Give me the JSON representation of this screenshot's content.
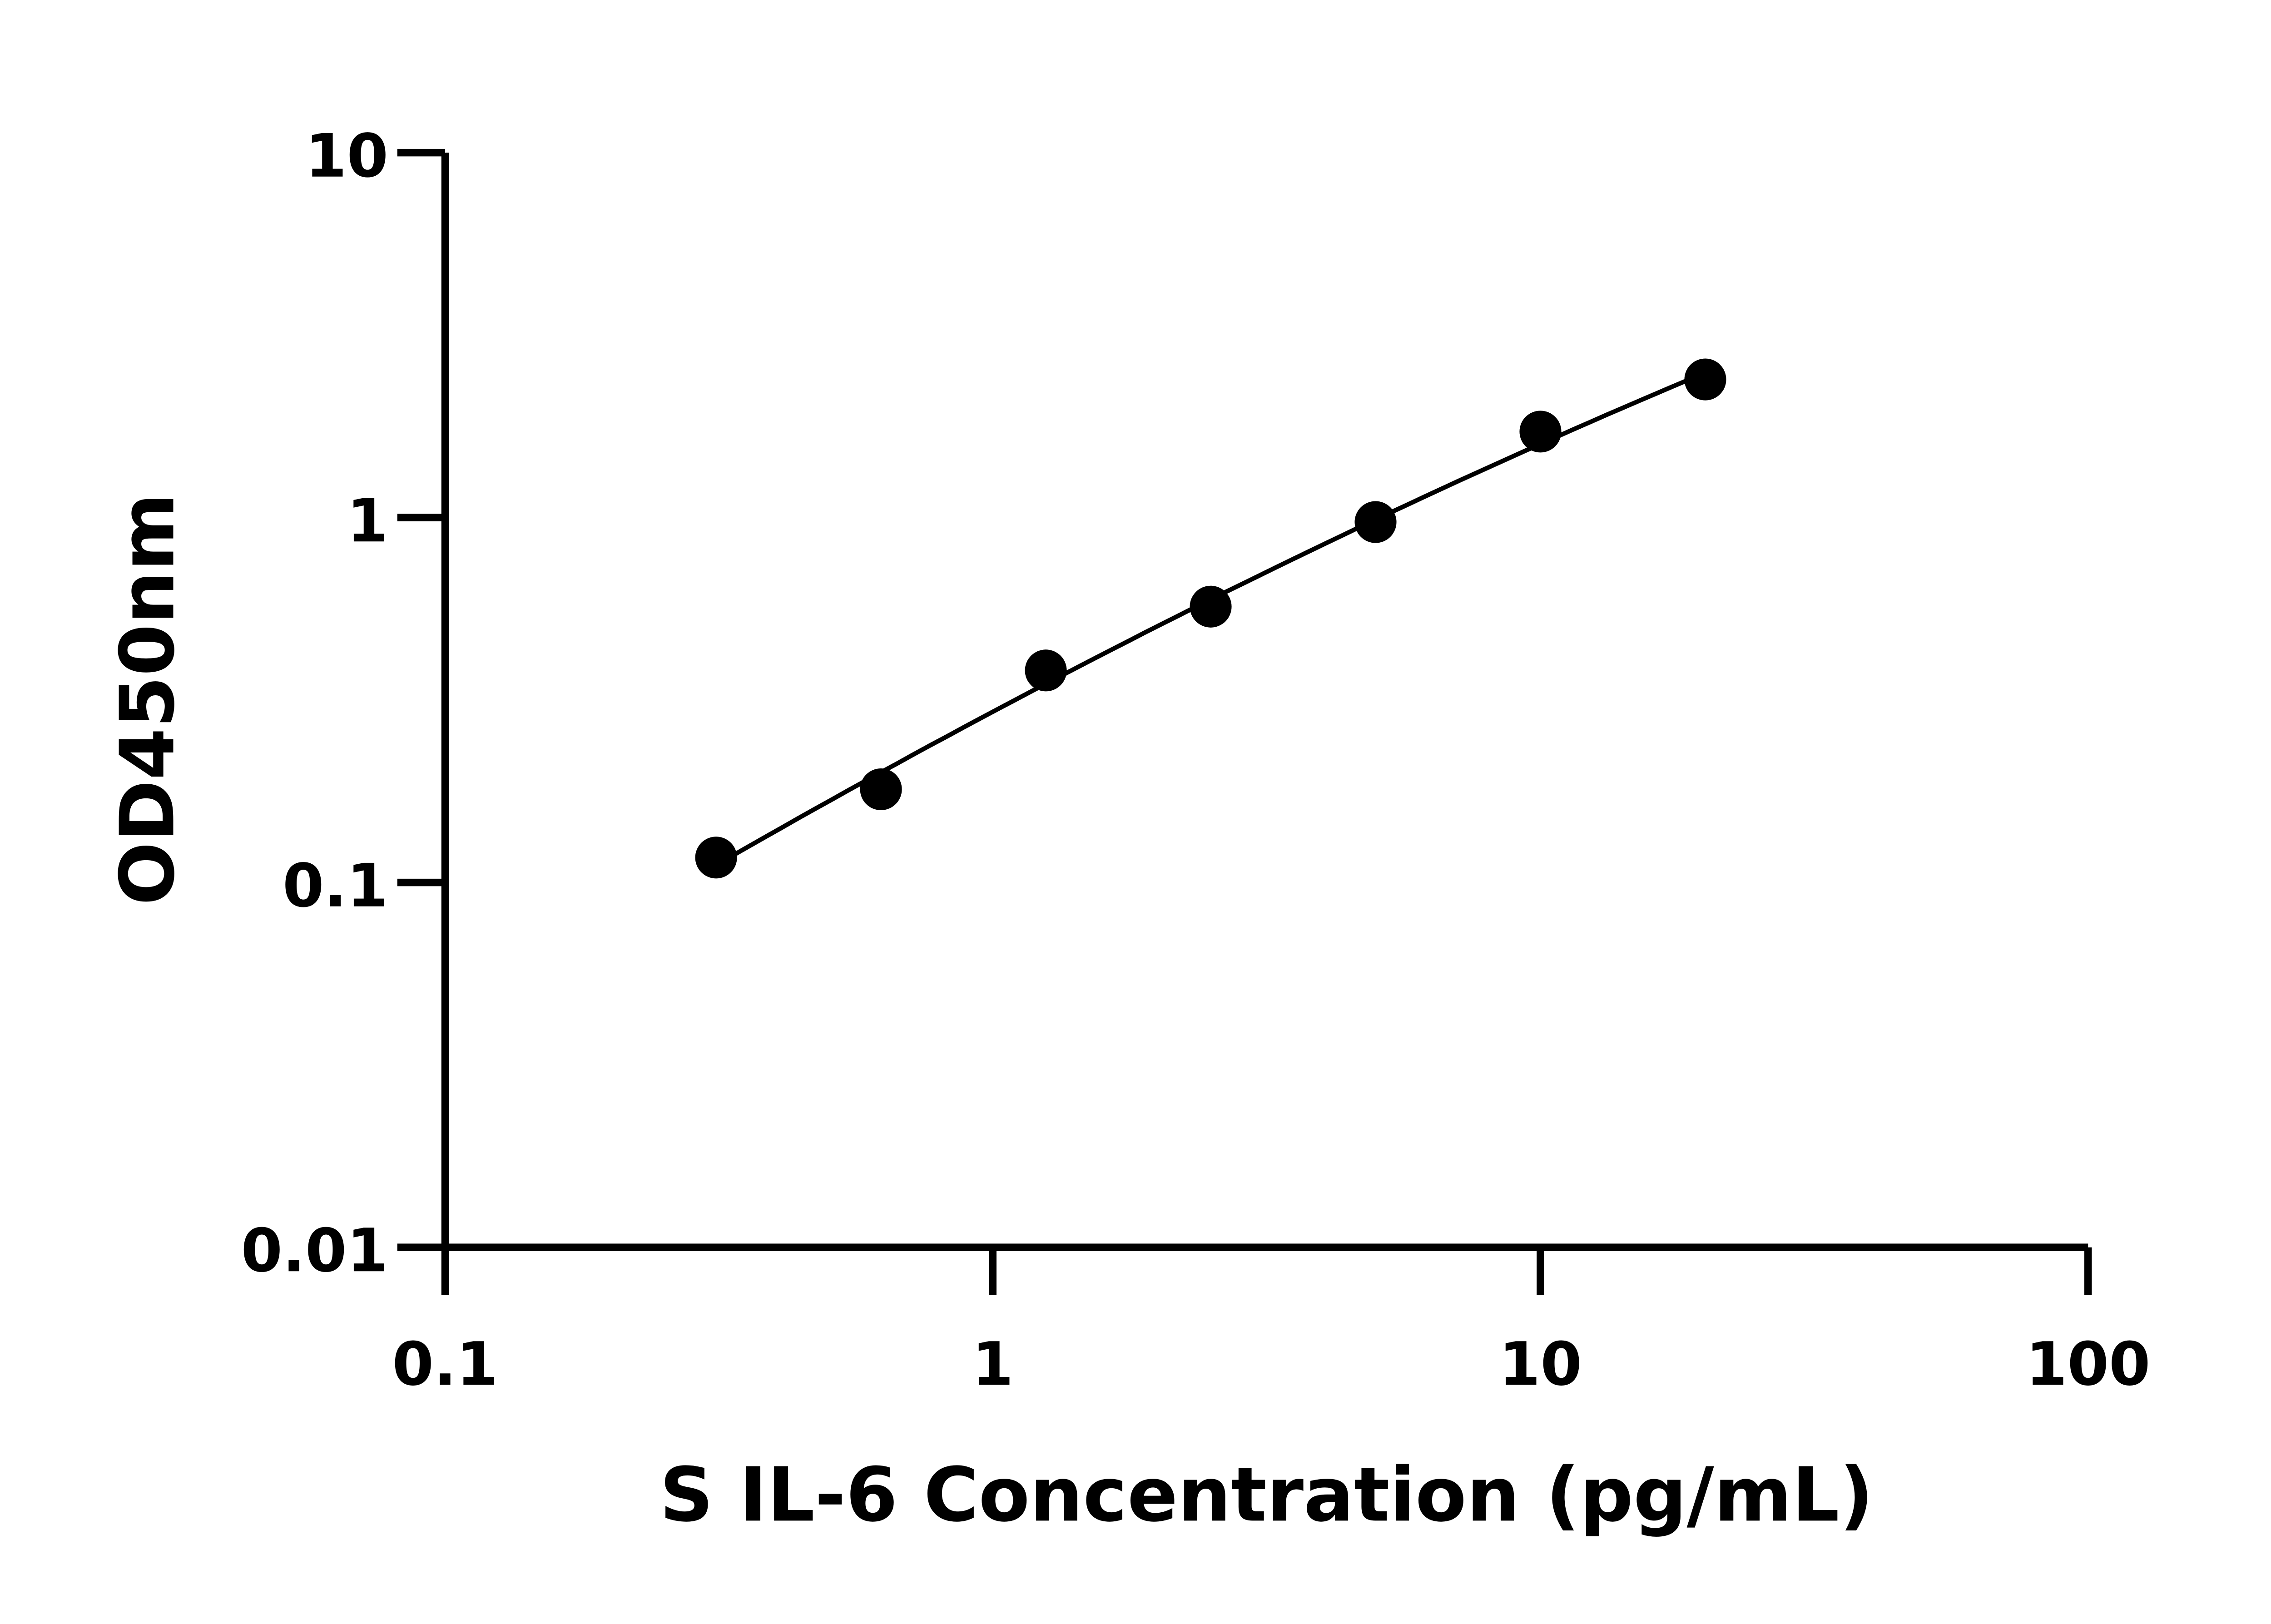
{
  "chart_data": {
    "type": "scatter",
    "title": "",
    "xlabel": "S IL-6 Concentration (pg/mL)",
    "ylabel": "OD450nm",
    "x_scale": "log",
    "y_scale": "log",
    "xlim": [
      0.1,
      100
    ],
    "ylim": [
      0.01,
      10
    ],
    "x_ticks": [
      "0.1",
      "1",
      "10",
      "100"
    ],
    "y_ticks": [
      "0.01",
      "0.1",
      "1",
      "10"
    ],
    "grid": false,
    "legend": "none",
    "fit_line": true,
    "series": [
      {
        "x": [
          0.3125,
          0.625,
          1.25,
          2.5,
          5,
          10,
          20
        ],
        "y": [
          0.117,
          0.18,
          0.381,
          0.57,
          0.972,
          1.72,
          2.39
        ]
      }
    ],
    "colors": {
      "points": "#000000",
      "line": "#000000",
      "axes": "#000000"
    }
  }
}
